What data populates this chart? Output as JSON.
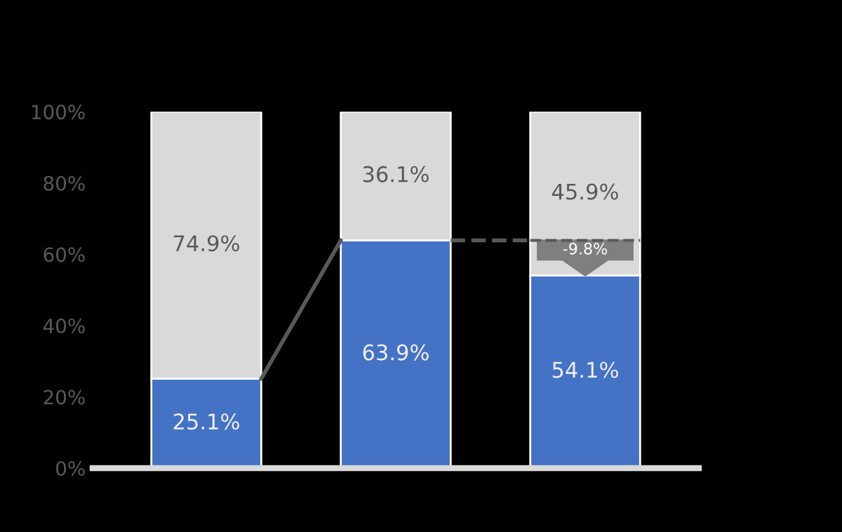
{
  "chart_data": {
    "type": "bar",
    "stacked": true,
    "categories": [
      null,
      null,
      null
    ],
    "series": [
      {
        "color": "#4472c4",
        "values": [
          25.1,
          63.9,
          54.1
        ],
        "value_labels": [
          "25.1%",
          "63.9%",
          "54.1%"
        ]
      },
      {
        "color": "#d9d9d9",
        "values": [
          74.9,
          36.1,
          45.9
        ],
        "value_labels": [
          "74.9%",
          "36.1%",
          "45.9%"
        ]
      }
    ],
    "ylim": [
      0,
      100
    ],
    "yticks": [
      {
        "value": 0,
        "label": "0%"
      },
      {
        "value": 20,
        "label": "20%"
      },
      {
        "value": 40,
        "label": "40%"
      },
      {
        "value": 60,
        "label": "60%"
      },
      {
        "value": 80,
        "label": "80%"
      },
      {
        "value": 100,
        "label": "100%"
      }
    ],
    "annotations": [
      "-9.8%"
    ],
    "grid": false,
    "legend": false
  }
}
